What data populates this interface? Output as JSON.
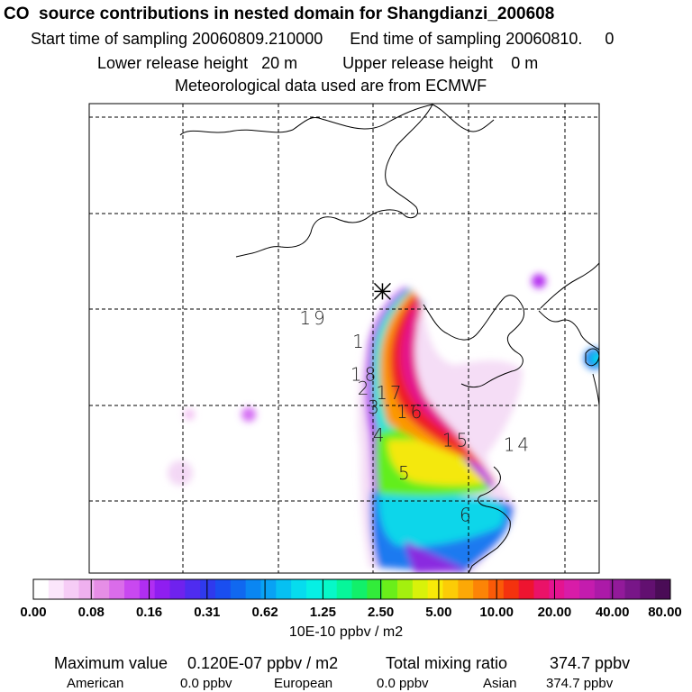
{
  "header": {
    "title": "CO  source contributions in nested domain for Shangdianzi_200608",
    "line1": "Start time of sampling 20060809.210000      End time of sampling 20060810.     0",
    "line2": "Lower release height   20 m          Upper release height    0 m",
    "line3": "Meteorological data used are from ECMWF"
  },
  "chart_data": {
    "type": "heatmap",
    "title": "CO  source contributions in nested domain for Shangdianzi_200608",
    "colorbar": {
      "labels": [
        "0.00",
        "0.08",
        "0.16",
        "0.31",
        "0.62",
        "1.25",
        "2.50",
        "5.00",
        "10.00",
        "20.00",
        "40.00",
        "80.00"
      ],
      "unit": "10E-10 ppbv / m2"
    },
    "grid": true,
    "time_labels": [
      {
        "text": "1",
        "xf": 0.53,
        "yf": 0.52
      },
      {
        "text": "19",
        "xf": 0.44,
        "yf": 0.47
      },
      {
        "text": "18",
        "xf": 0.54,
        "yf": 0.59
      },
      {
        "text": "2",
        "xf": 0.54,
        "yf": 0.62
      },
      {
        "text": "17",
        "xf": 0.59,
        "yf": 0.63
      },
      {
        "text": "3",
        "xf": 0.56,
        "yf": 0.66
      },
      {
        "text": "16",
        "xf": 0.63,
        "yf": 0.67
      },
      {
        "text": "4",
        "xf": 0.57,
        "yf": 0.72
      },
      {
        "text": "15",
        "xf": 0.72,
        "yf": 0.73
      },
      {
        "text": "14",
        "xf": 0.84,
        "yf": 0.74
      },
      {
        "text": "5",
        "xf": 0.62,
        "yf": 0.8
      },
      {
        "text": "6",
        "xf": 0.74,
        "yf": 0.89
      }
    ],
    "receptor": {
      "xf": 0.575,
      "yf": 0.4
    }
  },
  "footer": {
    "max_label": "Maximum value",
    "max_value": "0.120E-07 ppbv / m2",
    "total_label": "Total mixing ratio",
    "total_value": "374.7 ppbv",
    "regions": [
      {
        "name": "American",
        "value": "0.0 ppbv"
      },
      {
        "name": "European",
        "value": "0.0 ppbv"
      },
      {
        "name": "Asian",
        "value": "374.7 ppbv"
      }
    ]
  },
  "colors": {
    "scale": [
      "#ffffff",
      "#fbe6fb",
      "#f6ccf6",
      "#efb0ef",
      "#e68ee6",
      "#da6cea",
      "#c948f0",
      "#b02ef2",
      "#8f1ef0",
      "#6f22ee",
      "#4f2cf0",
      "#2f3aee",
      "#1a4ef0",
      "#1068f0",
      "#0a86f2",
      "#08a2f4",
      "#06c0f2",
      "#06dcee",
      "#06f0e4",
      "#06f8c8",
      "#06f69a",
      "#12f06a",
      "#32ec3a",
      "#6aee1a",
      "#a4f00e",
      "#d8f20a",
      "#f8ea08",
      "#fccc06",
      "#fca806",
      "#fc8406",
      "#fa5a08",
      "#f4320e",
      "#ee1430",
      "#ea1268",
      "#e41490",
      "#d81ca8",
      "#c41cae",
      "#ac1aa8",
      "#921a9a",
      "#781688",
      "#621070",
      "#4a0c56"
    ]
  }
}
